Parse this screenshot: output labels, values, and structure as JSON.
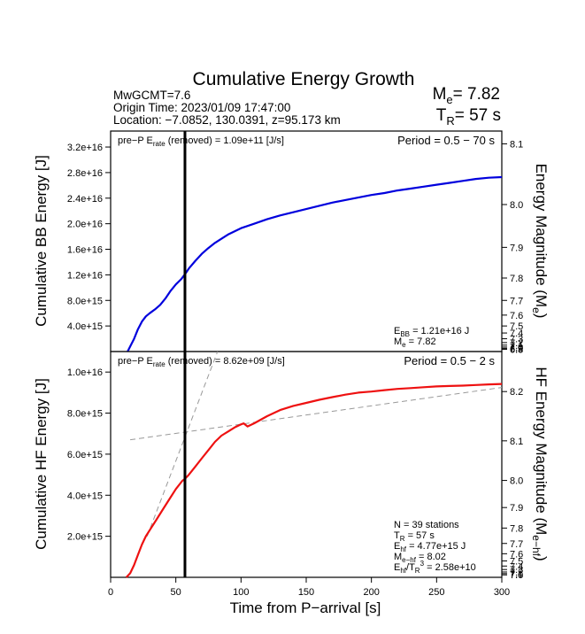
{
  "colors": {
    "bb_line": "#0000dd",
    "hf_line": "#ee1111",
    "axis": "#000000",
    "fit": "#999999"
  },
  "header": {
    "title": "Cumulative Energy Growth",
    "mw": "MwGCMT=7.6",
    "origin": "Origin Time: 2023/01/09 17:47:00",
    "location": "Location: −7.0852, 130.0391, z=95.173 km",
    "me_prefix": "M",
    "me_sub": "e",
    "me_value": "= 7.82",
    "tr_prefix": "T",
    "tr_sub": "R",
    "tr_value": "= 57 s"
  },
  "chart_data": [
    {
      "type": "line",
      "name": "bb",
      "ylabel": "Cumulative BB Energy [J]",
      "ylabel_right": "Energy Magnitude (Mₑ)",
      "xlim": [
        0,
        300
      ],
      "ylim": [
        0,
        3.45e+16
      ],
      "yticks": [
        4000000000000000.0,
        8000000000000000.0,
        1.2e+16,
        1.6e+16,
        2e+16,
        2.4e+16,
        2.8e+16,
        3.2e+16
      ],
      "ytick_labels": [
        "4.0e+15",
        "8.0e+15",
        "1.2e+16",
        "1.6e+16",
        "2.0e+16",
        "2.4e+16",
        "2.8e+16",
        "3.2e+16"
      ],
      "right_ticks": [
        {
          "mag": "8.1",
          "y": 3.25e+16
        },
        {
          "mag": "8.0",
          "y": 2.3e+16
        },
        {
          "mag": "7.9",
          "y": 1.63e+16
        },
        {
          "mag": "7.8",
          "y": 1.15e+16
        },
        {
          "mag": "7.7",
          "y": 8000000000000000.0
        },
        {
          "mag": "7.6",
          "y": 5700000000000000.0
        },
        {
          "mag": "7.5",
          "y": 4000000000000000.0
        },
        {
          "mag": "7.4",
          "y": 2900000000000000.0
        },
        {
          "mag": "7.3",
          "y": 2000000000000000.0
        },
        {
          "mag": "7.2",
          "y": 1400000000000000.0
        },
        {
          "mag": "7.1",
          "y": 1000000000000000.0
        },
        {
          "mag": "7.0",
          "y": 700000000000000.0
        },
        {
          "mag": "6.9",
          "y": 500000000000000.0
        },
        {
          "mag": "6.8",
          "y": 350000000000000.0
        }
      ],
      "annotation_left_prefix": "pre−P E",
      "annotation_left_sub": "rate",
      "annotation_left_suffix": " (removed) = 1.09e+11 [J/s]",
      "period": "Period = 0.5 − 70 s",
      "stats": [
        {
          "main": "E",
          "sub": "BB",
          "rest": " = 1.21e+16 J"
        },
        {
          "main": "M",
          "sub": "e",
          "rest": " = 7.82"
        }
      ],
      "series": [
        {
          "name": "bb",
          "x": [
            13,
            15,
            18,
            21,
            24,
            27,
            30,
            34,
            38,
            42,
            46,
            50,
            54,
            57,
            60,
            65,
            70,
            75,
            80,
            90,
            100,
            110,
            120,
            130,
            140,
            150,
            160,
            170,
            180,
            190,
            200,
            210,
            220,
            230,
            240,
            250,
            260,
            270,
            280,
            290,
            300
          ],
          "y": [
            0,
            800000000000000.0,
            2000000000000000.0,
            3500000000000000.0,
            4700000000000000.0,
            5500000000000000.0,
            6000000000000000.0,
            6600000000000000.0,
            7300000000000000.0,
            8300000000000000.0,
            9500000000000000.0,
            1.05e+16,
            1.13e+16,
            1.21e+16,
            1.3e+16,
            1.42e+16,
            1.53e+16,
            1.62e+16,
            1.7e+16,
            1.83e+16,
            1.93e+16,
            2e+16,
            2.07e+16,
            2.13e+16,
            2.18e+16,
            2.23e+16,
            2.28e+16,
            2.33e+16,
            2.37e+16,
            2.41e+16,
            2.45e+16,
            2.48e+16,
            2.52e+16,
            2.55e+16,
            2.58e+16,
            2.61e+16,
            2.64e+16,
            2.67e+16,
            2.7e+16,
            2.72e+16,
            2.73e+16
          ]
        }
      ]
    },
    {
      "type": "line",
      "name": "hf",
      "ylabel": "Cumulative HF Energy [J]",
      "ylabel_right": "HF Energy Magnitude (Mₑ₋ₕₒ)",
      "xlabel": "Time from P−arrival [s]",
      "xlim": [
        0,
        300
      ],
      "ylim": [
        0,
        1.1e+16
      ],
      "xticks": [
        0,
        50,
        100,
        150,
        200,
        250,
        300
      ],
      "xtick_labels": [
        "0",
        "50",
        "100",
        "150",
        "200",
        "250",
        "300"
      ],
      "yticks": [
        2000000000000000.0,
        4000000000000000.0,
        6000000000000000.0,
        8000000000000000.0,
        1e+16
      ],
      "ytick_labels": [
        "2.0e+15",
        "4.0e+15",
        "6.0e+15",
        "8.0e+15",
        "1.0e+16"
      ],
      "right_ticks": [
        {
          "mag": "8.2",
          "y": 9050000000000000.0
        },
        {
          "mag": "8.1",
          "y": 6650000000000000.0
        },
        {
          "mag": "8.0",
          "y": 4720000000000000.0
        },
        {
          "mag": "7.9",
          "y": 3400000000000000.0
        },
        {
          "mag": "7.8",
          "y": 2400000000000000.0
        },
        {
          "mag": "7.7",
          "y": 1650000000000000.0
        },
        {
          "mag": "7.6",
          "y": 1150000000000000.0
        },
        {
          "mag": "7.5",
          "y": 800000000000000.0
        },
        {
          "mag": "7.4",
          "y": 550000000000000.0
        },
        {
          "mag": "7.3",
          "y": 380000000000000.0
        },
        {
          "mag": "7.2",
          "y": 260000000000000.0
        },
        {
          "mag": "7.1",
          "y": 180000000000000.0
        },
        {
          "mag": "7.0",
          "y": 120000000000000.0
        }
      ],
      "annotation_left_prefix": "pre−P E",
      "annotation_left_sub": "rate",
      "annotation_left_suffix": " (removed) = 8.62e+09 [J/s]",
      "period": "Period = 0.5 − 2 s",
      "stats": [
        {
          "main": "N = 39 stations",
          "sub": "",
          "rest": ""
        },
        {
          "main": "T",
          "sub": "R",
          "rest": " = 57  s"
        },
        {
          "main": "E",
          "sub": "hf",
          "rest": " = 4.77e+15 J"
        },
        {
          "main": "M",
          "sub": "e−hf",
          "rest": " = 8.02"
        },
        {
          "main": "E",
          "sub": "hf",
          "rest": "/T",
          "sub2": "R",
          "sup": "3",
          "rest2": " =  2.58e+10"
        }
      ],
      "series": [
        {
          "name": "hf",
          "x": [
            12,
            15,
            18,
            21,
            24,
            27,
            30,
            35,
            40,
            45,
            50,
            55,
            57,
            60,
            65,
            70,
            75,
            80,
            85,
            90,
            95,
            100,
            102,
            105,
            110,
            120,
            130,
            140,
            150,
            160,
            170,
            180,
            190,
            200,
            210,
            220,
            230,
            240,
            250,
            260,
            270,
            280,
            290,
            300
          ],
          "y": [
            0,
            200000000000000.0,
            600000000000000.0,
            1100000000000000.0,
            1600000000000000.0,
            2000000000000000.0,
            2300000000000000.0,
            2800000000000000.0,
            3300000000000000.0,
            3800000000000000.0,
            4300000000000000.0,
            4700000000000000.0,
            4800000000000000.0,
            5000000000000000.0,
            5400000000000000.0,
            5800000000000000.0,
            6200000000000000.0,
            6600000000000000.0,
            6900000000000000.0,
            7100000000000000.0,
            7300000000000000.0,
            7450000000000000.0,
            7500000000000000.0,
            7350000000000000.0,
            7500000000000000.0,
            7850000000000000.0,
            8150000000000000.0,
            8350000000000000.0,
            8500000000000000.0,
            8650000000000000.0,
            8780000000000000.0,
            8900000000000000.0,
            9000000000000000.0,
            9050000000000000.0,
            9120000000000000.0,
            9180000000000000.0,
            9220000000000000.0,
            9260000000000000.0,
            9300000000000000.0,
            9320000000000000.0,
            9340000000000000.0,
            9370000000000000.0,
            9400000000000000.0,
            9420000000000000.0
          ]
        }
      ],
      "fit_lines": [
        {
          "x": [
            28,
            82
          ],
          "y": [
            2000000000000000.0,
            1.1e+16
          ]
        },
        {
          "x": [
            15,
            300
          ],
          "y": [
            6700000000000000.0,
            9250000000000000.0
          ]
        }
      ]
    }
  ],
  "tr_marker_x": 57
}
